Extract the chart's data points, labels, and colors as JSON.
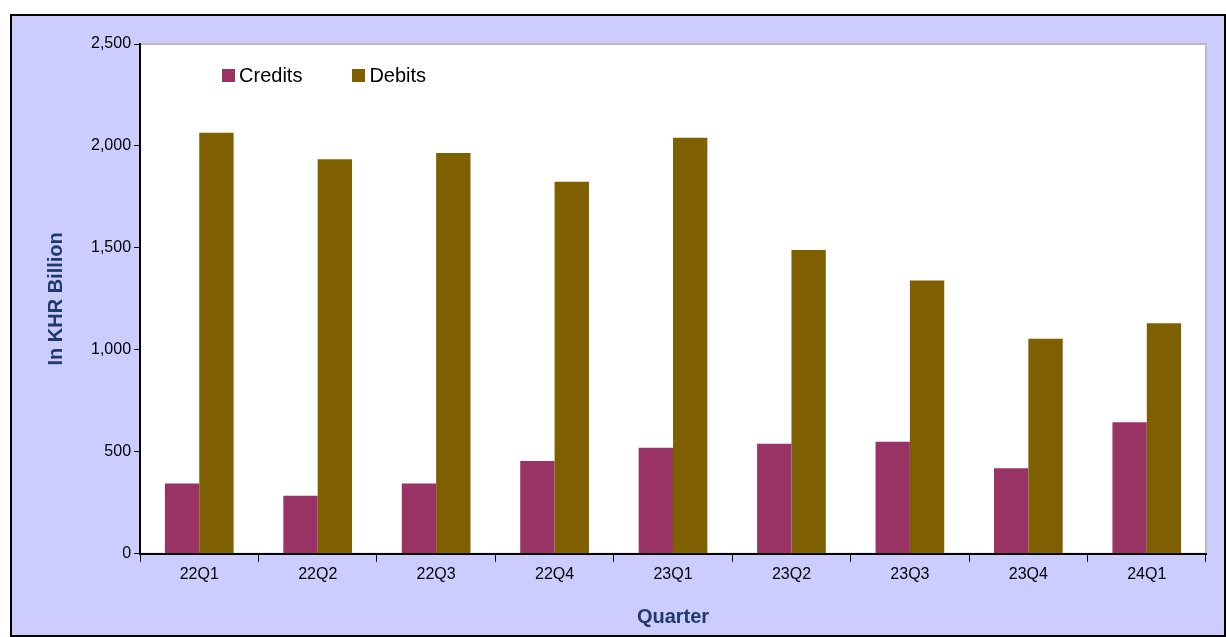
{
  "chart_data": {
    "type": "bar",
    "xlabel": "Quarter",
    "ylabel": "In KHR Billion",
    "categories": [
      "22Q1",
      "22Q2",
      "22Q3",
      "22Q4",
      "23Q1",
      "23Q2",
      "23Q3",
      "23Q4",
      "24Q1"
    ],
    "series": [
      {
        "name": "Credits",
        "color": "#993366",
        "values": [
          345,
          285,
          345,
          455,
          520,
          540,
          550,
          420,
          645
        ]
      },
      {
        "name": "Debits",
        "color": "#7f6000",
        "values": [
          2065,
          1935,
          1965,
          1825,
          2040,
          1490,
          1340,
          1055,
          1130
        ]
      }
    ],
    "ylim": [
      0,
      2500
    ],
    "yticks": [
      0,
      500,
      {
        "value": 1000,
        "label": "1,000"
      },
      {
        "value": 1500,
        "label": "1,500"
      },
      {
        "value": 2000,
        "label": "2,000"
      },
      {
        "value": 2500,
        "label": "2,500"
      }
    ],
    "legend": "top left"
  }
}
